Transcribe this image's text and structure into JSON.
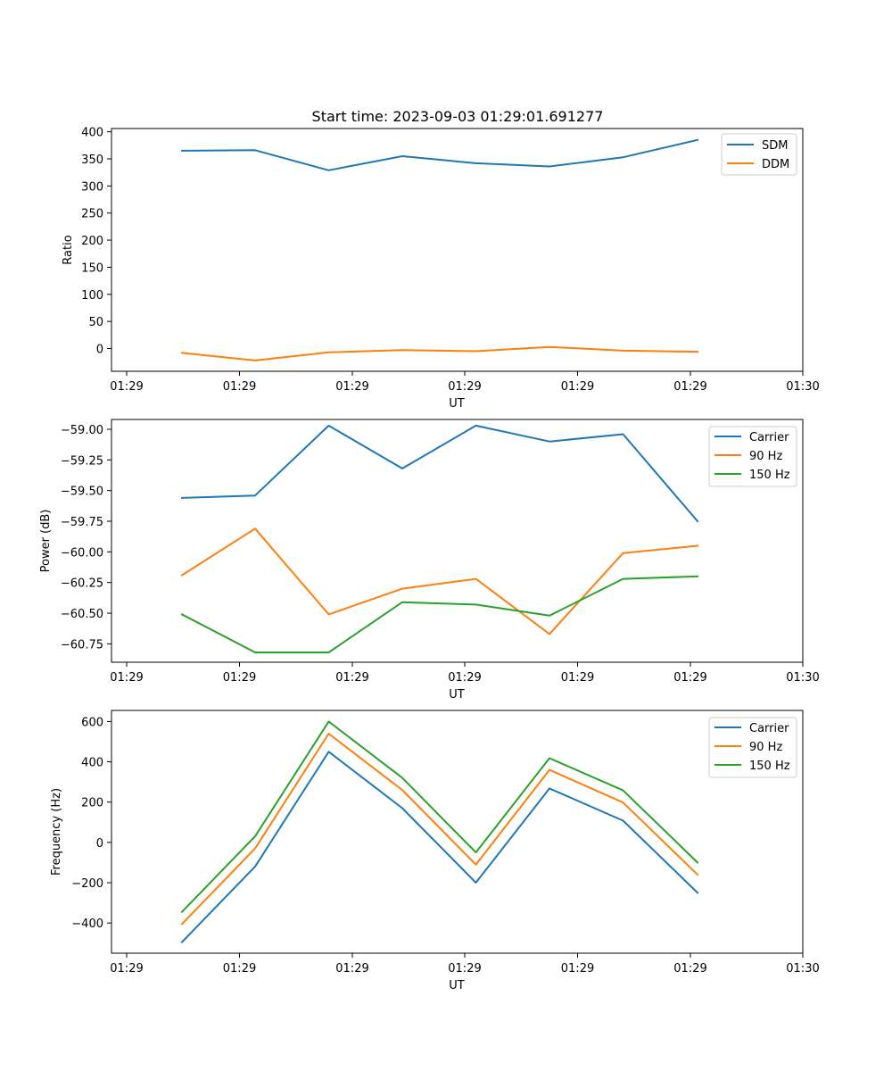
{
  "chart_data": [
    {
      "type": "line",
      "title": "Start time: 2023-09-03 01:29:01.691277",
      "xlabel": "UT",
      "ylabel": "Ratio",
      "x_tick_labels": [
        "01:29",
        "01:29",
        "01:29",
        "01:29",
        "01:29",
        "01:29",
        "01:30"
      ],
      "y_ticks": [
        0,
        50,
        100,
        150,
        200,
        250,
        300,
        350,
        400
      ],
      "y_tick_labels": [
        "0",
        "50",
        "100",
        "150",
        "200",
        "250",
        "300",
        "350",
        "400"
      ],
      "ylim": [
        -42,
        406
      ],
      "legend_position": "top-right",
      "series": [
        {
          "name": "SDM",
          "color": "#1f77b4",
          "values": [
            365,
            366,
            329,
            355,
            342,
            336,
            353,
            385
          ]
        },
        {
          "name": "DDM",
          "color": "#ff7f0e",
          "values": [
            -8,
            -22,
            -7,
            -3,
            -5,
            3,
            -4,
            -6
          ]
        }
      ]
    },
    {
      "type": "line",
      "title": "",
      "xlabel": "UT",
      "ylabel": "Power (dB)",
      "x_tick_labels": [
        "01:29",
        "01:29",
        "01:29",
        "01:29",
        "01:29",
        "01:29",
        "01:30"
      ],
      "y_ticks": [
        -60.75,
        -60.5,
        -60.25,
        -60.0,
        -59.75,
        -59.5,
        -59.25,
        -59.0
      ],
      "y_tick_labels": [
        "−60.75",
        "−60.50",
        "−60.25",
        "−60.00",
        "−59.75",
        "−59.50",
        "−59.25",
        "−59.00"
      ],
      "ylim": [
        -60.9,
        -58.92
      ],
      "legend_position": "top-right",
      "series": [
        {
          "name": "Carrier",
          "color": "#1f77b4",
          "values": [
            -59.56,
            -59.54,
            -58.97,
            -59.32,
            -58.97,
            -59.1,
            -59.04,
            -59.75
          ]
        },
        {
          "name": "90 Hz",
          "color": "#ff7f0e",
          "values": [
            -60.19,
            -59.81,
            -60.51,
            -60.3,
            -60.22,
            -60.67,
            -60.01,
            -59.95
          ]
        },
        {
          "name": "150 Hz",
          "color": "#2ca02c",
          "values": [
            -60.51,
            -60.82,
            -60.82,
            -60.41,
            -60.43,
            -60.52,
            -60.22,
            -60.2
          ]
        }
      ]
    },
    {
      "type": "line",
      "title": "",
      "xlabel": "UT",
      "ylabel": "Frequency (Hz)",
      "x_tick_labels": [
        "01:29",
        "01:29",
        "01:29",
        "01:29",
        "01:29",
        "01:29",
        "01:30"
      ],
      "y_ticks": [
        -400,
        -200,
        0,
        200,
        400,
        600
      ],
      "y_tick_labels": [
        "−400",
        "−200",
        "0",
        "200",
        "400",
        "600"
      ],
      "ylim": [
        -550,
        655
      ],
      "legend_position": "top-right",
      "series": [
        {
          "name": "Carrier",
          "color": "#1f77b4",
          "values": [
            -495,
            -120,
            450,
            170,
            -200,
            268,
            108,
            -250
          ]
        },
        {
          "name": "90 Hz",
          "color": "#ff7f0e",
          "values": [
            -405,
            -30,
            540,
            260,
            -110,
            360,
            198,
            -160
          ]
        },
        {
          "name": "150 Hz",
          "color": "#2ca02c",
          "values": [
            -345,
            30,
            600,
            320,
            -50,
            418,
            258,
            -100
          ]
        }
      ]
    }
  ]
}
